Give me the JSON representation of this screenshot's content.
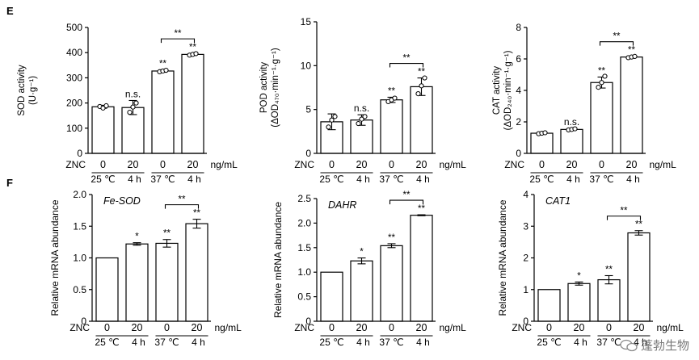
{
  "panel_labels": [
    "E",
    "F"
  ],
  "shared": {
    "treatment_label": "ZNC",
    "doses": [
      "0",
      "20",
      "0",
      "20"
    ],
    "dose_unit": "ng/mL",
    "group_conditions": [
      {
        "temp": "25 ℃",
        "time": "4 h"
      },
      {
        "temp": "37 ℃",
        "time": "4 h"
      }
    ],
    "bracket_label": "**"
  },
  "watermark": "蓬勃生物",
  "chart_data": [
    {
      "id": "sod",
      "type": "bar",
      "title": "",
      "ylabel": "SOD activity",
      "ylabel_unit": "(U·g⁻¹)",
      "ylim": [
        0,
        500
      ],
      "yticks": [
        "0",
        "100",
        "200",
        "300",
        "400",
        "500"
      ],
      "categories": [
        "0",
        "20",
        "0",
        "20"
      ],
      "values": [
        185,
        182,
        327,
        393
      ],
      "errors": [
        6,
        28,
        5,
        4
      ],
      "points": [
        [
          186,
          180,
          189
        ],
        [
          163,
          184,
          200
        ],
        [
          324,
          327,
          330
        ],
        [
          390,
          393,
          396
        ]
      ],
      "bar_labels": [
        "",
        "n.s.",
        "**",
        "**"
      ],
      "bracket": [
        2,
        3
      ]
    },
    {
      "id": "pod",
      "type": "bar",
      "title": "",
      "ylabel": "POD activity",
      "ylabel_unit": "(ΔOD₄₇₀·min⁻¹·g⁻¹)",
      "ylim": [
        0,
        15
      ],
      "yticks": [
        "0",
        "5",
        "10",
        "15"
      ],
      "categories": [
        "0",
        "20",
        "0",
        "20"
      ],
      "values": [
        3.6,
        3.8,
        6.1,
        7.6
      ],
      "errors": [
        0.9,
        0.6,
        0.3,
        1.0
      ],
      "points": [
        [
          3.0,
          3.8,
          4.2
        ],
        [
          3.4,
          3.9,
          4.2
        ],
        [
          5.9,
          6.1,
          6.3
        ],
        [
          6.8,
          7.7,
          8.6
        ]
      ],
      "bar_labels": [
        "",
        "n.s.",
        "**",
        "**"
      ],
      "bracket": [
        2,
        3
      ]
    },
    {
      "id": "cat",
      "type": "bar",
      "title": "",
      "ylabel": "CAT activity",
      "ylabel_unit": "(ΔOD₂₄₀·min⁻¹·g⁻¹)",
      "ylim": [
        0,
        8
      ],
      "yticks": [
        "0",
        "2",
        "4",
        "6",
        "8"
      ],
      "categories": [
        "0",
        "20",
        "0",
        "20"
      ],
      "values": [
        1.28,
        1.52,
        4.5,
        6.12
      ],
      "errors": [
        0.05,
        0.06,
        0.35,
        0.05
      ],
      "points": [
        [
          1.25,
          1.28,
          1.31
        ],
        [
          1.49,
          1.52,
          1.56
        ],
        [
          4.2,
          4.5,
          4.9
        ],
        [
          6.08,
          6.12,
          6.16
        ]
      ],
      "bar_labels": [
        "",
        "n.s.",
        "**",
        "**"
      ],
      "bracket": [
        2,
        3
      ]
    },
    {
      "id": "fe-sod",
      "type": "bar",
      "title": "Fe-SOD",
      "ylabel": "Relative mRNA abundance",
      "ylabel_unit": "",
      "ylim": [
        0,
        2.0
      ],
      "yticks": [
        "0",
        "0.5",
        "1.0",
        "1.5",
        "2.0"
      ],
      "categories": [
        "0",
        "20",
        "0",
        "20"
      ],
      "values": [
        1.0,
        1.22,
        1.23,
        1.54
      ],
      "errors": [
        0.0,
        0.02,
        0.06,
        0.07
      ],
      "bar_labels": [
        "",
        "*",
        "**",
        "**"
      ],
      "bracket": [
        2,
        3
      ]
    },
    {
      "id": "dahr",
      "type": "bar",
      "title": "DAHR",
      "ylabel": "Relative mRNA abundance",
      "ylabel_unit": "",
      "ylim": [
        0,
        2.5
      ],
      "yticks": [
        "0",
        "0.5",
        "1.0",
        "1.5",
        "2.0",
        "2.5"
      ],
      "categories": [
        "0",
        "20",
        "0",
        "20"
      ],
      "values": [
        1.0,
        1.23,
        1.54,
        2.16
      ],
      "errors": [
        0.0,
        0.06,
        0.04,
        0.01
      ],
      "bar_labels": [
        "",
        "*",
        "**",
        "**"
      ],
      "bracket": [
        2,
        3
      ]
    },
    {
      "id": "cat1",
      "type": "bar",
      "title": "CAT1",
      "ylabel": "Relative mRNA abundance",
      "ylabel_unit": "",
      "ylim": [
        0,
        4
      ],
      "yticks": [
        "0",
        "1",
        "2",
        "3",
        "4"
      ],
      "categories": [
        "0",
        "20",
        "0",
        "20"
      ],
      "values": [
        1.0,
        1.19,
        1.31,
        2.79
      ],
      "errors": [
        0.0,
        0.05,
        0.13,
        0.07
      ],
      "bar_labels": [
        "",
        "*",
        "**",
        "**"
      ],
      "bracket": [
        2,
        3
      ]
    }
  ]
}
